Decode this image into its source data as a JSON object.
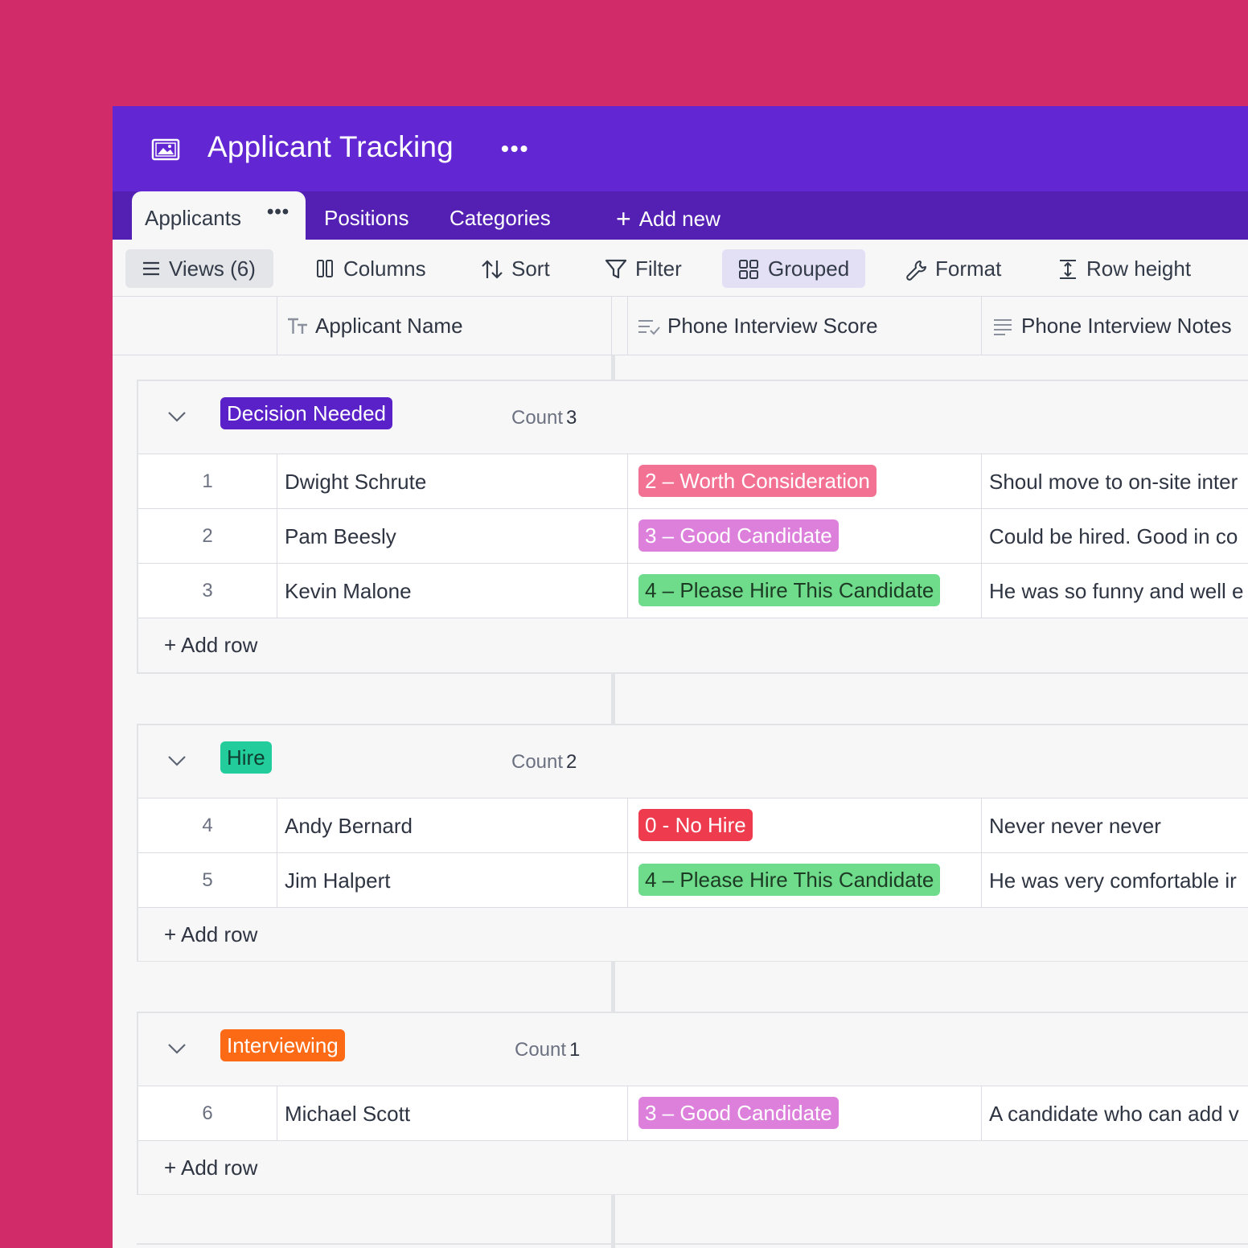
{
  "app": {
    "title": "Applicant Tracking"
  },
  "tabs": [
    {
      "label": "Applicants",
      "active": true
    },
    {
      "label": "Positions"
    },
    {
      "label": "Categories"
    }
  ],
  "add_new_label": "Add new",
  "toolbar": {
    "views": "Views (6)",
    "columns": "Columns",
    "sort": "Sort",
    "filter": "Filter",
    "grouped": "Grouped",
    "format": "Format",
    "row_height": "Row height"
  },
  "columns": {
    "name": "Applicant Name",
    "score": "Phone Interview Score",
    "notes": "Phone Interview Notes"
  },
  "count_label": "Count",
  "add_row_label": "+ Add row",
  "groups": [
    {
      "label": "Decision Needed",
      "color": "#5b21c9",
      "count": "3",
      "rows": [
        {
          "num": "1",
          "name": "Dwight Schrute",
          "score": "2 – Worth Consideration",
          "score_color": "#f37294",
          "notes": "Shoul move to on-site inter"
        },
        {
          "num": "2",
          "name": "Pam Beesly",
          "score": "3 – Good Candidate",
          "score_color": "#dc80dc",
          "notes": "Could be hired. Good in co"
        },
        {
          "num": "3",
          "name": "Kevin Malone",
          "score": "4 – Please Hire This Candidate",
          "score_color": "#6fdc8c",
          "score_text": "#1d3b24",
          "notes": "He was so funny and well e"
        }
      ]
    },
    {
      "label": "Hire",
      "color": "#22cc9b",
      "label_text": "#0f3d30",
      "count": "2",
      "rows": [
        {
          "num": "4",
          "name": "Andy Bernard",
          "score": "0 - No Hire",
          "score_color": "#ee3b4d",
          "notes": "Never never never"
        },
        {
          "num": "5",
          "name": "Jim Halpert",
          "score": "4 – Please Hire This Candidate",
          "score_color": "#6fdc8c",
          "score_text": "#1d3b24",
          "notes": "He was very comfortable ir"
        }
      ]
    },
    {
      "label": "Interviewing",
      "color": "#fd6a16",
      "count": "1",
      "rows": [
        {
          "num": "6",
          "name": "Michael Scott",
          "score": "3 – Good Candidate",
          "score_color": "#dc80dc",
          "notes": "A candidate who can add v"
        }
      ]
    }
  ]
}
